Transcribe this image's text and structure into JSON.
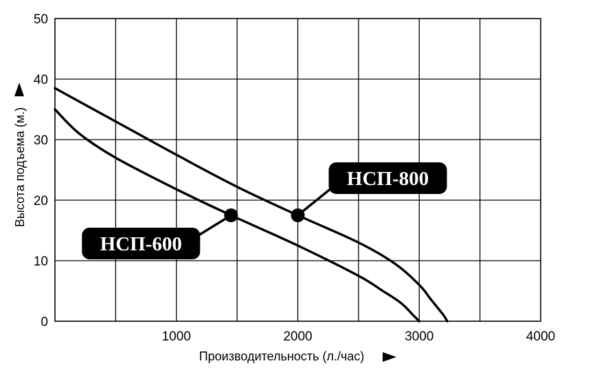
{
  "chart_data": {
    "type": "line",
    "title": "",
    "xlabel": "Производительность (л./час)",
    "ylabel": "Высота подъема (м.)",
    "xlim": [
      0,
      4000
    ],
    "ylim": [
      0,
      50
    ],
    "xticks": [
      1000,
      2000,
      3000,
      4000
    ],
    "yticks": [
      0,
      10,
      20,
      30,
      40,
      50
    ],
    "x_grid_step": 500,
    "y_grid_step": 10,
    "grid": true,
    "axis_arrows": true,
    "series": [
      {
        "name": "НСП-800",
        "x": [
          0,
          500,
          1000,
          1500,
          2000,
          2500,
          2800,
          3000,
          3100,
          3200,
          3230
        ],
        "y": [
          38.5,
          33,
          27.5,
          22.2,
          17.5,
          13,
          9.5,
          6,
          3.5,
          1,
          0
        ],
        "marker": {
          "x": 2000,
          "y": 17.5
        },
        "label_position": "upper-right"
      },
      {
        "name": "НСП-600",
        "x": [
          0,
          200,
          500,
          1000,
          1450,
          2000,
          2500,
          2700,
          2850,
          2950,
          3000
        ],
        "y": [
          35,
          31,
          27,
          21.8,
          17.5,
          12.5,
          7.5,
          5,
          3,
          1,
          0
        ],
        "marker": {
          "x": 1450,
          "y": 17.5
        },
        "label_position": "lower-left"
      }
    ],
    "colors": {
      "line": "#000000",
      "callout_bg": "#000000",
      "callout_text": "#ffffff"
    }
  }
}
